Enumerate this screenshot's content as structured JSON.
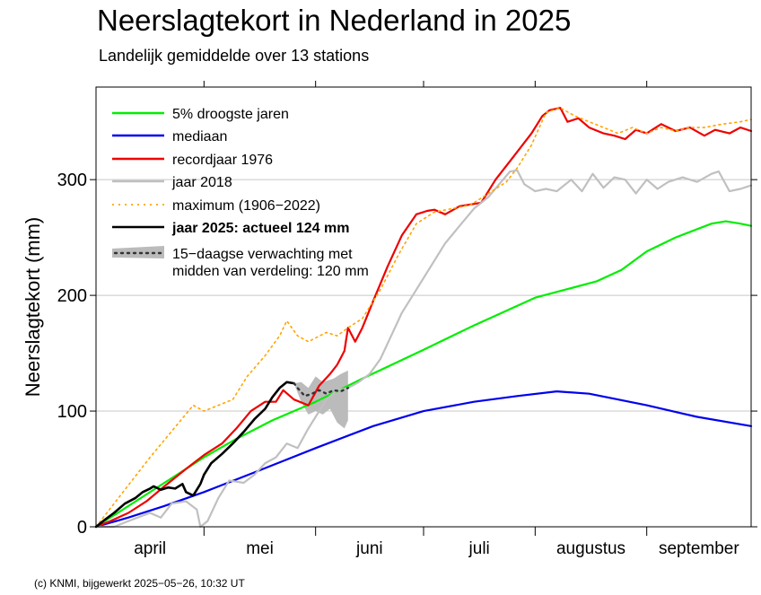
{
  "page": {
    "title": "Neerslagtekort in Nederland in 2025",
    "subtitle": "Landelijk gemiddelde over 13 stations",
    "footer": "(c) KNMI, bijgewerkt 2025−05−26, 10:32 UT"
  },
  "chart_data": {
    "type": "line",
    "ylabel": "Neerslagtekort (mm)",
    "ylim": [
      0,
      380
    ],
    "yticks": [
      0,
      100,
      200,
      300
    ],
    "xlim_day_of_year": [
      91,
      273
    ],
    "month_labels": [
      {
        "label": "april",
        "day": 106
      },
      {
        "label": "mei",
        "day": 136.5
      },
      {
        "label": "juni",
        "day": 167
      },
      {
        "label": "juli",
        "day": 197.5
      },
      {
        "label": "augustus",
        "day": 228.5
      },
      {
        "label": "september",
        "day": 258.5
      }
    ],
    "month_boundaries_day": [
      121,
      152,
      182,
      213,
      244
    ],
    "grid": "horizontal at 100, 200, 300",
    "legend_placement": "top-left",
    "series": [
      {
        "name": "5% droogste jaren",
        "color": "#00ee00",
        "style": "solid",
        "points": [
          [
            91,
            0
          ],
          [
            100,
            18
          ],
          [
            110,
            38
          ],
          [
            121,
            60
          ],
          [
            130,
            76
          ],
          [
            140,
            92
          ],
          [
            152,
            108
          ],
          [
            165,
            128
          ],
          [
            182,
            153
          ],
          [
            196,
            174
          ],
          [
            213,
            198
          ],
          [
            230,
            212
          ],
          [
            237,
            222
          ],
          [
            244,
            238
          ],
          [
            252,
            250
          ],
          [
            262,
            262
          ],
          [
            266,
            264
          ],
          [
            270,
            262
          ],
          [
            273,
            260
          ]
        ]
      },
      {
        "name": "mediaan",
        "color": "#0000ee",
        "style": "solid",
        "points": [
          [
            91,
            0
          ],
          [
            100,
            8
          ],
          [
            110,
            18
          ],
          [
            121,
            30
          ],
          [
            135,
            47
          ],
          [
            152,
            68
          ],
          [
            168,
            87
          ],
          [
            182,
            100
          ],
          [
            196,
            108
          ],
          [
            208,
            113
          ],
          [
            219,
            117
          ],
          [
            228,
            115
          ],
          [
            244,
            105
          ],
          [
            258,
            95
          ],
          [
            273,
            87
          ]
        ]
      },
      {
        "name": "recordjaar 1976",
        "color": "#ee0000",
        "style": "solid",
        "points": [
          [
            91,
            0
          ],
          [
            95,
            5
          ],
          [
            100,
            12
          ],
          [
            105,
            22
          ],
          [
            110,
            35
          ],
          [
            116,
            50
          ],
          [
            121,
            62
          ],
          [
            126,
            72
          ],
          [
            130,
            85
          ],
          [
            134,
            100
          ],
          [
            138,
            108
          ],
          [
            141,
            108
          ],
          [
            143,
            118
          ],
          [
            146,
            110
          ],
          [
            150,
            105
          ],
          [
            153,
            122
          ],
          [
            156,
            132
          ],
          [
            158,
            140
          ],
          [
            160,
            152
          ],
          [
            161,
            172
          ],
          [
            163,
            160
          ],
          [
            165,
            172
          ],
          [
            168,
            195
          ],
          [
            172,
            225
          ],
          [
            176,
            252
          ],
          [
            180,
            270
          ],
          [
            183,
            273
          ],
          [
            185,
            274
          ],
          [
            188,
            270
          ],
          [
            192,
            277
          ],
          [
            198,
            280
          ],
          [
            202,
            300
          ],
          [
            207,
            320
          ],
          [
            212,
            340
          ],
          [
            215,
            355
          ],
          [
            217,
            360
          ],
          [
            220,
            362
          ],
          [
            222,
            350
          ],
          [
            225,
            353
          ],
          [
            228,
            345
          ],
          [
            232,
            340
          ],
          [
            235,
            338
          ],
          [
            238,
            335
          ],
          [
            241,
            343
          ],
          [
            244,
            340
          ],
          [
            248,
            348
          ],
          [
            252,
            342
          ],
          [
            256,
            345
          ],
          [
            260,
            338
          ],
          [
            263,
            343
          ],
          [
            267,
            340
          ],
          [
            270,
            345
          ],
          [
            273,
            342
          ]
        ]
      },
      {
        "name": "jaar 2018",
        "color": "#c0c0c0",
        "style": "solid",
        "points": [
          [
            91,
            0
          ],
          [
            96,
            0
          ],
          [
            100,
            5
          ],
          [
            106,
            12
          ],
          [
            109,
            8
          ],
          [
            112,
            20
          ],
          [
            116,
            22
          ],
          [
            119,
            15
          ],
          [
            120,
            0
          ],
          [
            122,
            5
          ],
          [
            125,
            25
          ],
          [
            128,
            40
          ],
          [
            132,
            38
          ],
          [
            135,
            45
          ],
          [
            138,
            55
          ],
          [
            141,
            60
          ],
          [
            144,
            72
          ],
          [
            147,
            68
          ],
          [
            150,
            85
          ],
          [
            152,
            95
          ],
          [
            155,
            110
          ],
          [
            158,
            118
          ],
          [
            161,
            120
          ],
          [
            164,
            125
          ],
          [
            167,
            132
          ],
          [
            170,
            145
          ],
          [
            173,
            165
          ],
          [
            176,
            185
          ],
          [
            180,
            205
          ],
          [
            184,
            225
          ],
          [
            188,
            245
          ],
          [
            192,
            260
          ],
          [
            196,
            275
          ],
          [
            200,
            285
          ],
          [
            203,
            296
          ],
          [
            206,
            307
          ],
          [
            208,
            308
          ],
          [
            210,
            296
          ],
          [
            213,
            290
          ],
          [
            216,
            292
          ],
          [
            219,
            290
          ],
          [
            223,
            300
          ],
          [
            226,
            290
          ],
          [
            229,
            305
          ],
          [
            232,
            293
          ],
          [
            235,
            302
          ],
          [
            238,
            300
          ],
          [
            241,
            288
          ],
          [
            244,
            300
          ],
          [
            247,
            292
          ],
          [
            250,
            298
          ],
          [
            254,
            302
          ],
          [
            258,
            298
          ],
          [
            262,
            305
          ],
          [
            264,
            307
          ],
          [
            267,
            290
          ],
          [
            270,
            292
          ],
          [
            273,
            295
          ]
        ]
      },
      {
        "name": "maximum  (1906−2022)",
        "color": "#ffa500",
        "style": "dotted",
        "points": [
          [
            91,
            0
          ],
          [
            96,
            20
          ],
          [
            101,
            40
          ],
          [
            106,
            60
          ],
          [
            110,
            75
          ],
          [
            114,
            90
          ],
          [
            118,
            105
          ],
          [
            121,
            100
          ],
          [
            125,
            105
          ],
          [
            129,
            110
          ],
          [
            133,
            130
          ],
          [
            138,
            148
          ],
          [
            142,
            165
          ],
          [
            144,
            178
          ],
          [
            147,
            165
          ],
          [
            150,
            160
          ],
          [
            155,
            168
          ],
          [
            158,
            165
          ],
          [
            161,
            172
          ],
          [
            165,
            180
          ],
          [
            170,
            205
          ],
          [
            175,
            235
          ],
          [
            180,
            262
          ],
          [
            185,
            272
          ],
          [
            190,
            275
          ],
          [
            195,
            278
          ],
          [
            200,
            288
          ],
          [
            205,
            298
          ],
          [
            208,
            310
          ],
          [
            212,
            330
          ],
          [
            216,
            358
          ],
          [
            220,
            362
          ],
          [
            224,
            355
          ],
          [
            228,
            350
          ],
          [
            232,
            345
          ],
          [
            236,
            340
          ],
          [
            240,
            345
          ],
          [
            244,
            340
          ],
          [
            248,
            345
          ],
          [
            252,
            342
          ],
          [
            256,
            345
          ],
          [
            260,
            345
          ],
          [
            265,
            348
          ],
          [
            270,
            350
          ],
          [
            273,
            352
          ]
        ]
      },
      {
        "name": "jaar 2025: actueel 124 mm",
        "color": "#000000",
        "style": "solid",
        "points": [
          [
            91,
            0
          ],
          [
            93,
            5
          ],
          [
            96,
            12
          ],
          [
            99,
            20
          ],
          [
            102,
            25
          ],
          [
            104,
            30
          ],
          [
            106,
            33
          ],
          [
            107,
            35
          ],
          [
            109,
            32
          ],
          [
            111,
            34
          ],
          [
            113,
            33
          ],
          [
            115,
            37
          ],
          [
            116,
            30
          ],
          [
            118,
            27
          ],
          [
            120,
            37
          ],
          [
            121,
            45
          ],
          [
            123,
            55
          ],
          [
            126,
            63
          ],
          [
            129,
            72
          ],
          [
            132,
            82
          ],
          [
            135,
            93
          ],
          [
            138,
            102
          ],
          [
            140,
            112
          ],
          [
            142,
            120
          ],
          [
            144,
            125
          ],
          [
            146,
            124
          ]
        ]
      }
    ],
    "forecast": {
      "name": "15−daagse verwachting met midden van verdeling: 120 mm",
      "band_color": "#bbbbbb",
      "median_color": "#333333",
      "median": [
        [
          146,
          124
        ],
        [
          147,
          120
        ],
        [
          149,
          113
        ],
        [
          151,
          115
        ],
        [
          153,
          118
        ],
        [
          155,
          115
        ],
        [
          157,
          118
        ],
        [
          159,
          117
        ],
        [
          161,
          120
        ]
      ],
      "upper": [
        [
          146,
          124
        ],
        [
          148,
          125
        ],
        [
          150,
          120
        ],
        [
          152,
          130
        ],
        [
          154,
          125
        ],
        [
          157,
          128
        ],
        [
          159,
          132
        ],
        [
          161,
          135
        ]
      ],
      "lower": [
        [
          146,
          124
        ],
        [
          148,
          108
        ],
        [
          150,
          97
        ],
        [
          152,
          100
        ],
        [
          154,
          97
        ],
        [
          156,
          102
        ],
        [
          158,
          90
        ],
        [
          160,
          85
        ],
        [
          161,
          92
        ]
      ]
    }
  }
}
